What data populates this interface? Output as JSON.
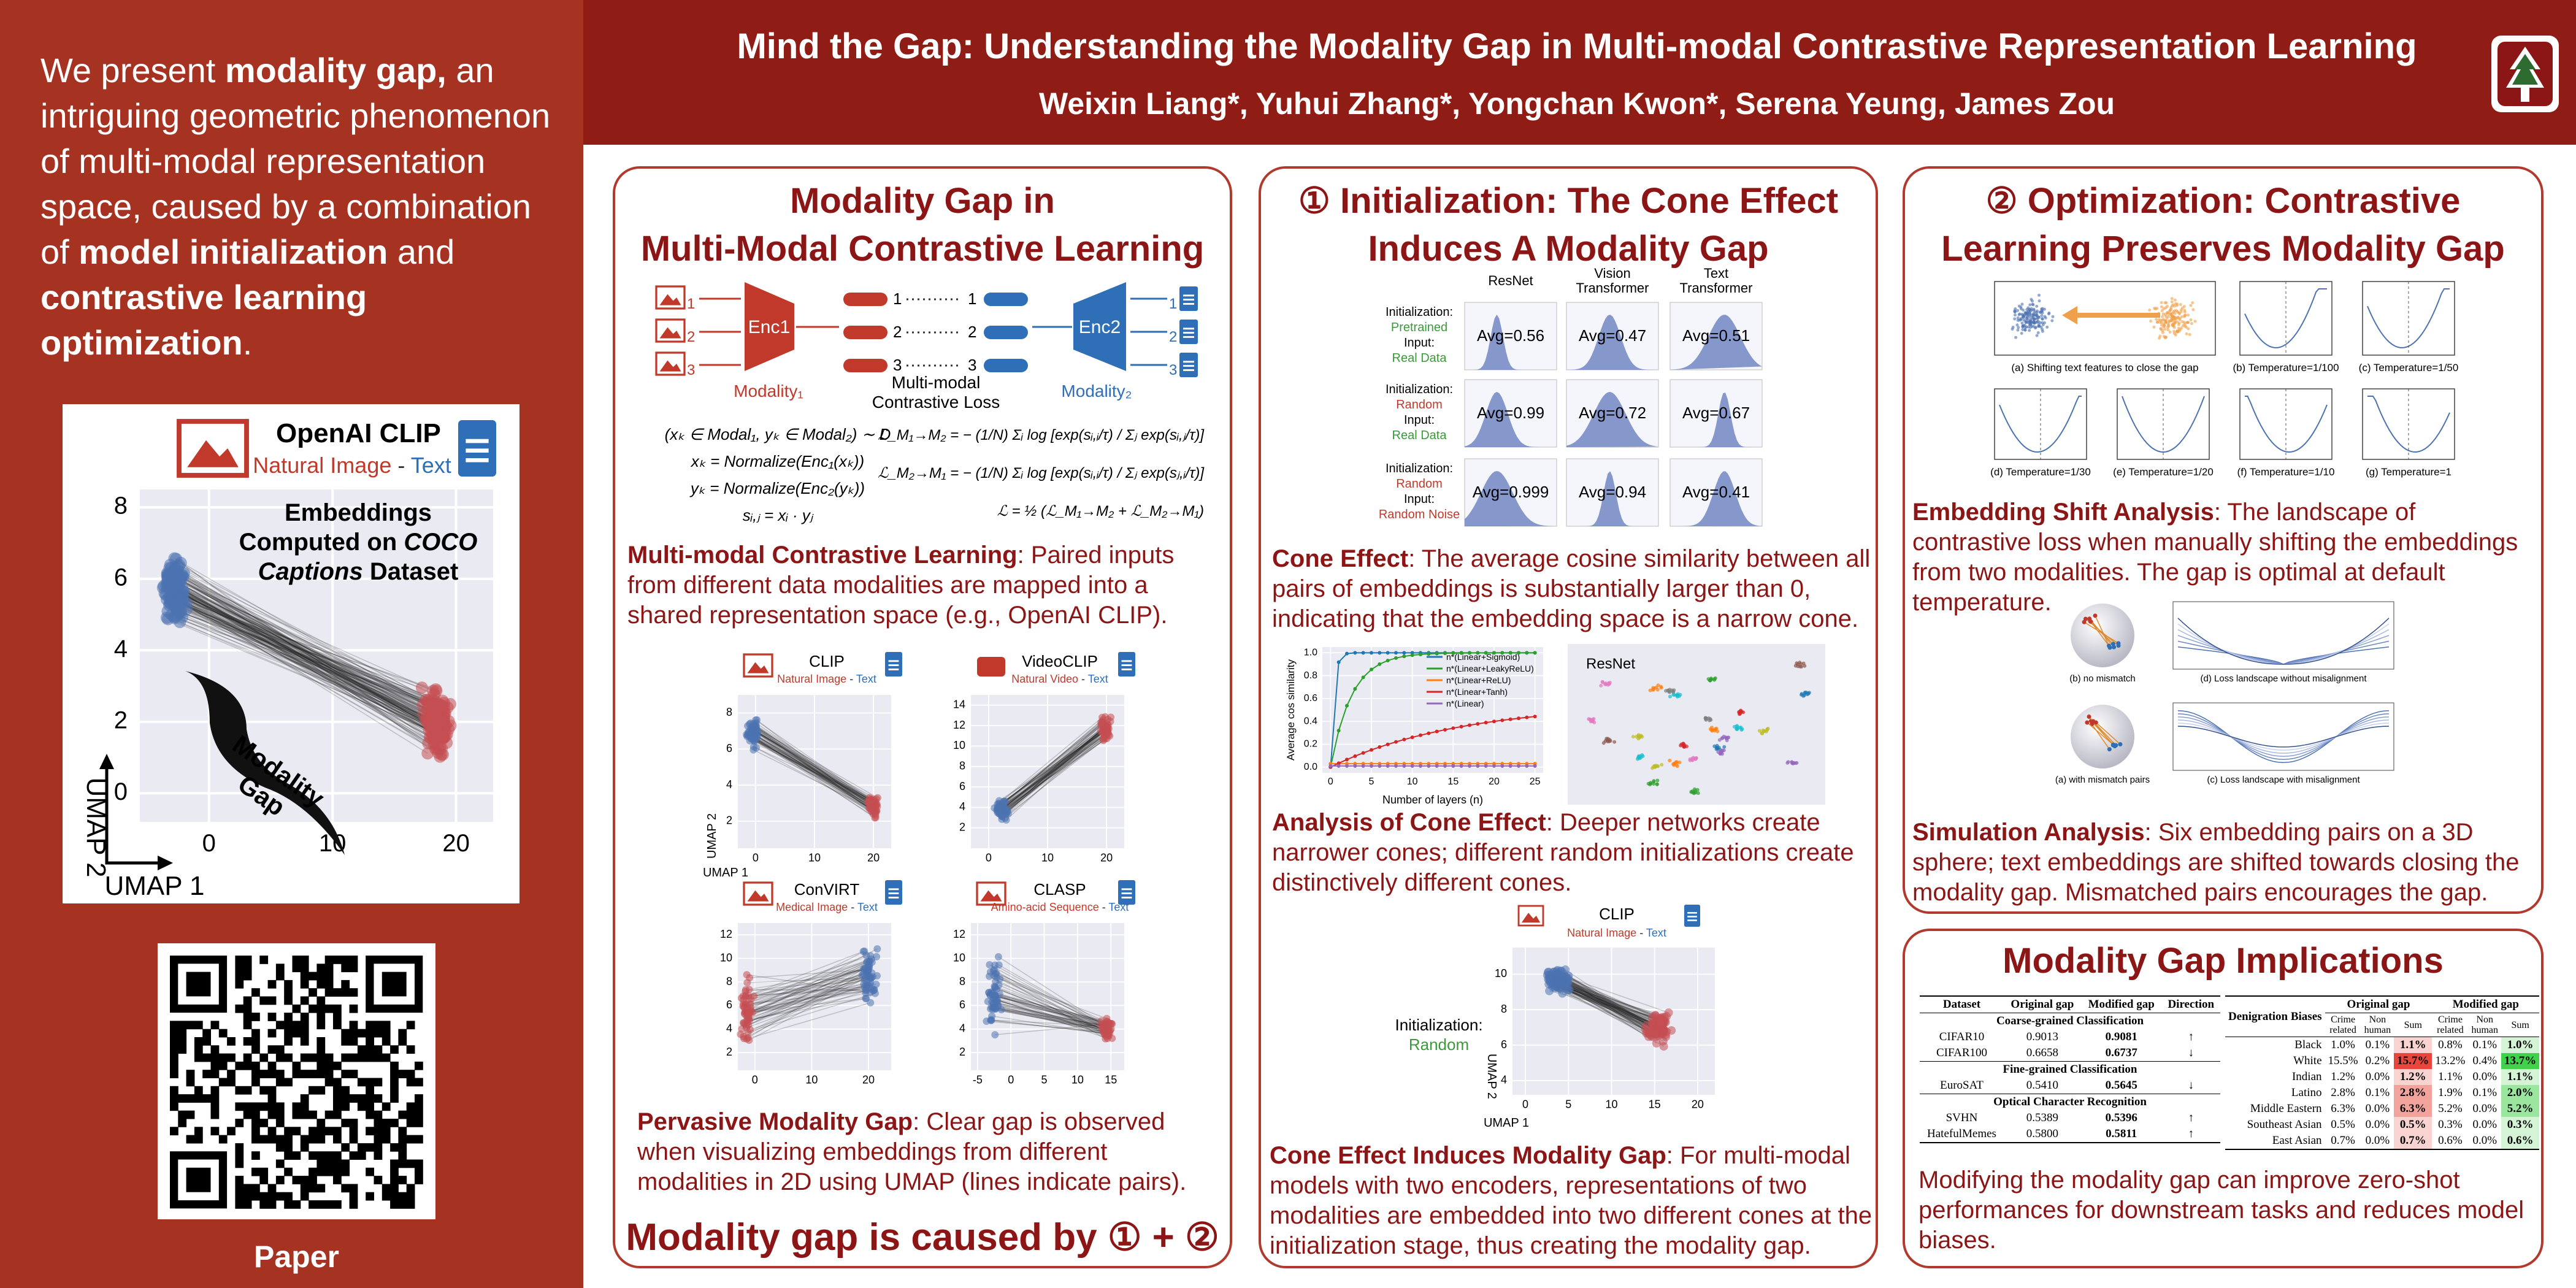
{
  "sidebar": {
    "intro": [
      "We present ",
      "modality gap,",
      " an intriguing geometric phenomenon of multi-modal representation space, caused by a combination of ",
      "model initialization",
      " and ",
      "contrastive learning optimization",
      "."
    ],
    "clip_figure": {
      "title": "OpenAI CLIP",
      "subtitle": [
        "Natural Image",
        " - ",
        "Text"
      ],
      "annotation": [
        "Embeddings",
        "Computed on ",
        "COCO",
        "Captions",
        " Dataset"
      ],
      "brace_label": [
        "Modality",
        "Gap"
      ],
      "xlim": [
        -5.6,
        23
      ],
      "ylim": [
        -0.8,
        8.5
      ],
      "xticks": [
        0,
        10,
        20
      ],
      "yticks": [
        0,
        2,
        4,
        6,
        8
      ],
      "xlabel": "UMAP 1",
      "ylabel": "UMAP 2"
    },
    "qr_label": "Paper"
  },
  "header": {
    "title": "Mind the Gap: Understanding the Modality Gap in Multi-modal Contrastive Representation Learning",
    "authors": "Weixin Liang*, Yuhui Zhang*, Yongchan Kwon*, Serena Yeung, James Zou"
  },
  "panel1": {
    "title": [
      "Modality Gap in",
      "Multi-Modal Contrastive Learning"
    ],
    "diagram": {
      "encoders": [
        "Enc1",
        "Enc2"
      ],
      "indices": [
        "1",
        "2",
        "3"
      ],
      "modalities": [
        "Modality₁",
        "Modality₂"
      ],
      "loss": [
        "Multi-modal",
        "Contrastive Loss"
      ],
      "equations_left": [
        "(xₖ ∈ Modal₁, yₖ ∈ Modal₂) ∼ D",
        "xₖ = Normalize(Enc₁(xₖ))",
        "yₖ = Normalize(Enc₂(yₖ))",
        "sᵢ,ⱼ = xᵢ · yⱼ"
      ],
      "equations_right": [
        "ℒ_M₁→M₂ = − (1/N) Σᵢ log [exp(sᵢ,ᵢ/τ) / Σⱼ exp(sᵢ,ⱼ/τ)]",
        "ℒ_M₂→M₁ = − (1/N) Σᵢ log [exp(sᵢ,ᵢ/τ) / Σⱼ exp(sⱼ,ᵢ/τ)]",
        "ℒ = ½ (ℒ_M₁→M₂ + ℒ_M₂→M₁)"
      ]
    },
    "text1": {
      "lead": "Multi-modal Contrastive Learning",
      "body": ": Paired inputs from different data modalities are mapped into a shared representation space (e.g., OpenAI CLIP)."
    },
    "plots": [
      {
        "title": "CLIP",
        "subtitle": [
          "Natural Image",
          " - ",
          "Text"
        ],
        "xlim": [
          -3,
          23
        ],
        "ylim": [
          0.5,
          9
        ],
        "xticks": [
          0,
          10,
          20
        ],
        "yticks": [
          2,
          4,
          6,
          8
        ],
        "xlabel": "UMAP 1",
        "ylabel": "UMAP 2"
      },
      {
        "title": "VideoCLIP",
        "subtitle": [
          "Natural Video",
          " - ",
          "Text"
        ],
        "xlim": [
          -3,
          23
        ],
        "ylim": [
          0,
          15
        ],
        "xticks": [
          0,
          10,
          20
        ],
        "yticks": [
          2,
          4,
          6,
          8,
          10,
          12,
          14
        ]
      },
      {
        "title": "ConVIRT",
        "subtitle": [
          "Medical Image",
          " - ",
          "Text"
        ],
        "xlim": [
          -3,
          24
        ],
        "ylim": [
          0.5,
          13
        ],
        "xticks": [
          0,
          10,
          20
        ],
        "yticks": [
          2,
          4,
          6,
          8,
          10,
          12
        ]
      },
      {
        "title": "CLASP",
        "subtitle": [
          "Amino-acid Sequence",
          " - ",
          "Text"
        ],
        "xlim": [
          -6,
          17
        ],
        "ylim": [
          0.5,
          13
        ],
        "xticks": [
          -5,
          0,
          5,
          10,
          15
        ],
        "yticks": [
          2,
          4,
          6,
          8,
          10,
          12
        ]
      }
    ],
    "text2": {
      "lead": "Pervasive Modality Gap",
      "body": ": Clear gap is observed when visualizing embeddings from different modalities in 2D using UMAP (lines indicate pairs)."
    },
    "conclusion": "Modality gap is caused by ① + ②"
  },
  "panel2": {
    "title": [
      "① Initialization: The Cone Effect",
      "Induces A Modality Gap"
    ],
    "avg_grid": {
      "columns": [
        [
          "ResNet"
        ],
        [
          "Vision",
          "Transformer"
        ],
        [
          "Text",
          "Transformer"
        ]
      ],
      "rows": [
        {
          "lines": [
            "Initialization:",
            "Pretrained",
            "Input:",
            "Real Data"
          ],
          "colors": [
            "#000000",
            "#3a9a3a",
            "#000000",
            "#3a9a3a"
          ],
          "avgs": [
            "Avg=0.56",
            "Avg=0.47",
            "Avg=0.51"
          ]
        },
        {
          "lines": [
            "Initialization:",
            "Random",
            "Input:",
            "Real Data"
          ],
          "colors": [
            "#000000",
            "#c0392b",
            "#000000",
            "#3a9a3a"
          ],
          "avgs": [
            "Avg=0.99",
            "Avg=0.72",
            "Avg=0.67"
          ]
        },
        {
          "lines": [
            "Initialization:",
            "Random",
            "Input:",
            "Random Noise"
          ],
          "colors": [
            "#000000",
            "#c0392b",
            "#000000",
            "#c0392b"
          ],
          "avgs": [
            "Avg=0.999",
            "Avg=0.94",
            "Avg=0.41"
          ]
        }
      ]
    },
    "text1": {
      "lead": "Cone Effect",
      "body": ": The average cosine similarity between all pairs of embeddings is substantially larger than 0, indicating that the embedding space is a narrow cone."
    },
    "cone_chart": {
      "xlabel": "Number of layers (n)",
      "ylabel": "Average cos similarity",
      "xlim": [
        -1,
        26
      ],
      "ylim": [
        -0.05,
        1.05
      ],
      "xticks": [
        0,
        5,
        10,
        15,
        20,
        25
      ],
      "yticks": [
        {
          "value": 0,
          "label": "0.0"
        },
        {
          "value": 0.2,
          "label": "0.2"
        },
        {
          "value": 0.4,
          "label": "0.4"
        },
        {
          "value": 0.6,
          "label": "0.6"
        },
        {
          "value": 0.8,
          "label": "0.8"
        },
        {
          "value": 1,
          "label": "1.0"
        }
      ],
      "legend": [
        {
          "name": "n*(Linear+Sigmoid)",
          "color": "#1f77b4"
        },
        {
          "name": "n*(Linear+LeakyReLU)",
          "color": "#2ca02c"
        },
        {
          "name": "n*(Linear+ReLU)",
          "color": "#ff7f0e"
        },
        {
          "name": "n*(Linear+Tanh)",
          "color": "#d62728"
        },
        {
          "name": "n*(Linear)",
          "color": "#9467bd"
        }
      ]
    },
    "resnet_scatter": {
      "title": "ResNet"
    },
    "text2": {
      "lead": "Analysis of Cone Effect",
      "body": ": Deeper networks create narrower cones; different random initializations create distinctively different cones."
    },
    "clip_plot": {
      "title": "CLIP",
      "subtitle": [
        "Natural Image",
        " - ",
        "Text"
      ],
      "init_label": [
        "Initialization:",
        "Random"
      ],
      "xlim": [
        -1.5,
        22
      ],
      "ylim": [
        3.2,
        11.5
      ],
      "xticks": [
        0,
        5,
        10,
        15,
        20
      ],
      "yticks": [
        4,
        6,
        8,
        10
      ],
      "xlabel": "UMAP 1",
      "ylabel": "UMAP 2"
    },
    "text3": {
      "lead": "Cone Effect Induces Modality Gap",
      "body": ": For multi-modal models with two encoders, representations of two modalities are embedded into two different cones at the initialization stage, thus creating the modality gap."
    }
  },
  "panel3": {
    "title": [
      "② Optimization: Contrastive",
      "Learning Preserves Modality Gap"
    ],
    "shift_captions": [
      "(a) Shifting text features to close the gap",
      "(b) Temperature=1/100",
      "(c) Temperature=1/50",
      "(d) Temperature=1/30",
      "(e) Temperature=1/20",
      "(f) Temperature=1/10",
      "(g) Temperature=1"
    ],
    "text1": {
      "lead": "Embedding Shift Analysis",
      "body": ": The landscape of contrastive loss when manually shifting the embeddings from two modalities. The gap is optimal at default temperature."
    },
    "sim_captions": [
      "(b) no mismatch",
      "(d) Loss landscape without misalignment",
      "(a) with mismatch pairs",
      "(c) Loss landscape with misalignment"
    ],
    "text2": {
      "lead": "Simulation Analysis",
      "body": ": Six embedding pairs on a 3D sphere; text embeddings are shifted towards closing the modality gap. Mismatched pairs encourages the gap."
    }
  },
  "panel4": {
    "title": "Modality Gap Implications",
    "table1": {
      "header": [
        "Dataset",
        "Original gap",
        "Modified gap",
        "Direction"
      ],
      "sections": [
        {
          "title": "Coarse-grained Classification",
          "rows": [
            [
              "CIFAR10",
              "0.9013",
              "0.9081",
              "↑"
            ],
            [
              "CIFAR100",
              "0.6658",
              "0.6737",
              "↓"
            ]
          ]
        },
        {
          "title": "Fine-grained Classification",
          "rows": [
            [
              "EuroSAT",
              "0.5410",
              "0.5645",
              "↓"
            ]
          ]
        },
        {
          "title": "Optical Character Recognition",
          "rows": [
            [
              "SVHN",
              "0.5389",
              "0.5396",
              "↑"
            ],
            [
              "HatefulMemes",
              "0.5800",
              "0.5811",
              "↑"
            ]
          ]
        }
      ]
    },
    "table2": {
      "header": [
        "Denigration Biases",
        "Original gap",
        "Modified gap"
      ],
      "subheader": [
        "Crime related",
        "Non human",
        "Sum",
        "Crime related",
        "Non human",
        "Sum"
      ],
      "rows": [
        [
          "Black",
          "1.0%",
          "0.1%",
          "1.1%",
          "0.8%",
          "0.1%",
          "1.0%"
        ],
        [
          "White",
          "15.5%",
          "0.2%",
          "15.7%",
          "13.2%",
          "0.4%",
          "13.7%"
        ],
        [
          "Indian",
          "1.2%",
          "0.0%",
          "1.2%",
          "1.1%",
          "0.0%",
          "1.1%"
        ],
        [
          "Latino",
          "2.8%",
          "0.1%",
          "2.8%",
          "1.9%",
          "0.1%",
          "2.0%"
        ],
        [
          "Middle Eastern",
          "6.3%",
          "0.0%",
          "6.3%",
          "5.2%",
          "0.0%",
          "5.2%"
        ],
        [
          "Southeast Asian",
          "0.5%",
          "0.0%",
          "0.5%",
          "0.3%",
          "0.0%",
          "0.3%"
        ],
        [
          "East Asian",
          "0.7%",
          "0.0%",
          "0.7%",
          "0.6%",
          "0.0%",
          "0.6%"
        ]
      ]
    },
    "text": "Modifying the modality gap can improve zero-shot performances for downstream tasks and reduces model biases."
  }
}
